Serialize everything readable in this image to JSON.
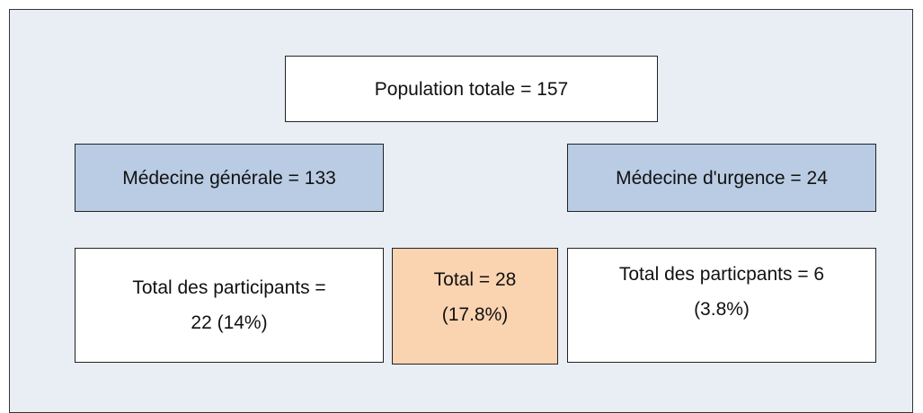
{
  "nodes": [
    {
      "lines": [
        "Population totale = 157"
      ]
    },
    {
      "lines": [
        "Médecine générale = 133"
      ]
    },
    {
      "lines": [
        "Médecine d'urgence = 24"
      ]
    },
    {
      "lines": [
        "Total des participants =",
        "22 (14%)"
      ]
    },
    {
      "lines": [
        "Total = 28",
        "(17.8%)"
      ]
    },
    {
      "lines": [
        "Total des particpants = 6",
        "(3.8%)"
      ]
    }
  ]
}
